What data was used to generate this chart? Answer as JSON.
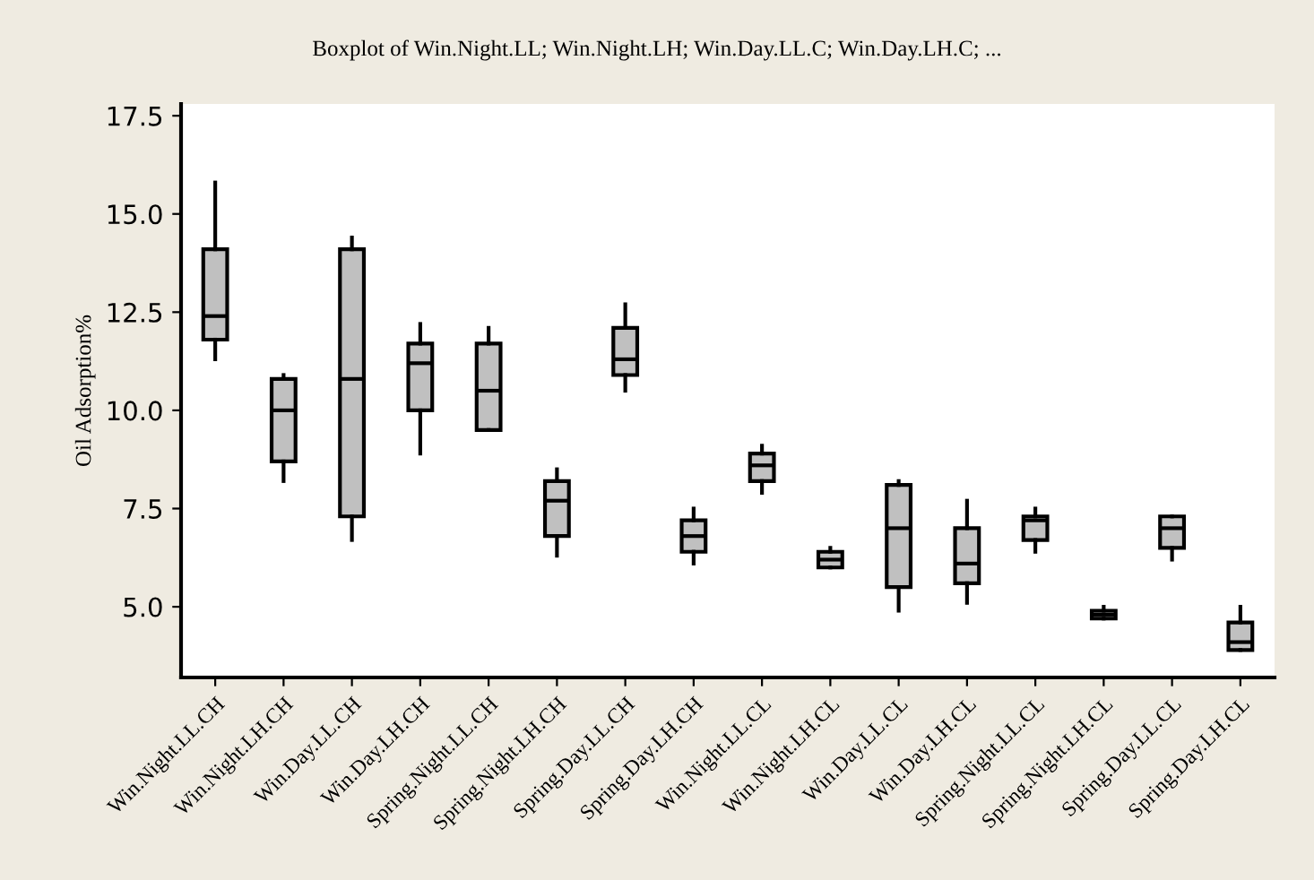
{
  "chart_data": {
    "type": "box",
    "title": "Boxplot of Win.Night.LL; Win.Night.LH; Win.Day.LL.C; Win.Day.LH.C; ...",
    "ylabel": "Oil Adsorption%",
    "categories": [
      "Win.Night.LL.CH",
      "Win.Night.LH.CH",
      "Win.Day.LL.CH",
      "Win.Day.LH.CH",
      "Spring.Night.LL.CH",
      "Spring.Night.LH.CH",
      "Spring.Day.LL.CH",
      "Spring.Day.LH.CH",
      "Win.Night.LL.CL",
      "Win.Night.LH.CL",
      "Win.Day.LL.CL",
      "Win.Day.LH.CL",
      "Spring.Night.LL.CL",
      "Spring.Night.LH.CL",
      "Spring.Day.LL.CL",
      "Spring.Day.LH.CL"
    ],
    "color": "#c0c0c0",
    "boxes": [
      {
        "low": 11.3,
        "q1": 11.8,
        "median": 12.4,
        "q3": 14.1,
        "high": 15.8
      },
      {
        "low": 8.2,
        "q1": 8.7,
        "median": 10.0,
        "q3": 10.8,
        "high": 10.9
      },
      {
        "low": 6.7,
        "q1": 7.3,
        "median": 10.8,
        "q3": 14.1,
        "high": 14.4
      },
      {
        "low": 8.9,
        "q1": 10.0,
        "median": 11.2,
        "q3": 11.7,
        "high": 12.2
      },
      {
        "low": 9.5,
        "q1": 9.5,
        "median": 10.5,
        "q3": 11.7,
        "high": 12.1
      },
      {
        "low": 6.3,
        "q1": 6.8,
        "median": 7.7,
        "q3": 8.2,
        "high": 8.5
      },
      {
        "low": 10.5,
        "q1": 10.9,
        "median": 11.3,
        "q3": 12.1,
        "high": 12.7
      },
      {
        "low": 6.1,
        "q1": 6.4,
        "median": 6.8,
        "q3": 7.2,
        "high": 7.5
      },
      {
        "low": 7.9,
        "q1": 8.2,
        "median": 8.6,
        "q3": 8.9,
        "high": 9.1
      },
      {
        "low": 6.0,
        "q1": 6.0,
        "median": 6.2,
        "q3": 6.4,
        "high": 6.5
      },
      {
        "low": 4.9,
        "q1": 5.5,
        "median": 7.0,
        "q3": 8.1,
        "high": 8.2
      },
      {
        "low": 5.1,
        "q1": 5.6,
        "median": 6.1,
        "q3": 7.0,
        "high": 7.7
      },
      {
        "low": 6.4,
        "q1": 6.7,
        "median": 7.2,
        "q3": 7.3,
        "high": 7.5
      },
      {
        "low": 4.7,
        "q1": 4.7,
        "median": 4.8,
        "q3": 4.9,
        "high": 5.0
      },
      {
        "low": 6.2,
        "q1": 6.5,
        "median": 7.0,
        "q3": 7.3,
        "high": 7.3
      },
      {
        "low": 3.9,
        "q1": 3.9,
        "median": 4.1,
        "q3": 4.6,
        "high": 5.0
      }
    ],
    "ylim": [
      3.2,
      17.8
    ],
    "yticks": [
      {
        "value": 5,
        "label": "5.0"
      },
      {
        "value": 7.5,
        "label": "7.5"
      },
      {
        "value": 10,
        "label": "10.0"
      },
      {
        "value": 12.5,
        "label": "12.5"
      },
      {
        "value": 15,
        "label": "15.0"
      },
      {
        "value": 17.5,
        "label": "17.5"
      }
    ],
    "grid": false
  }
}
